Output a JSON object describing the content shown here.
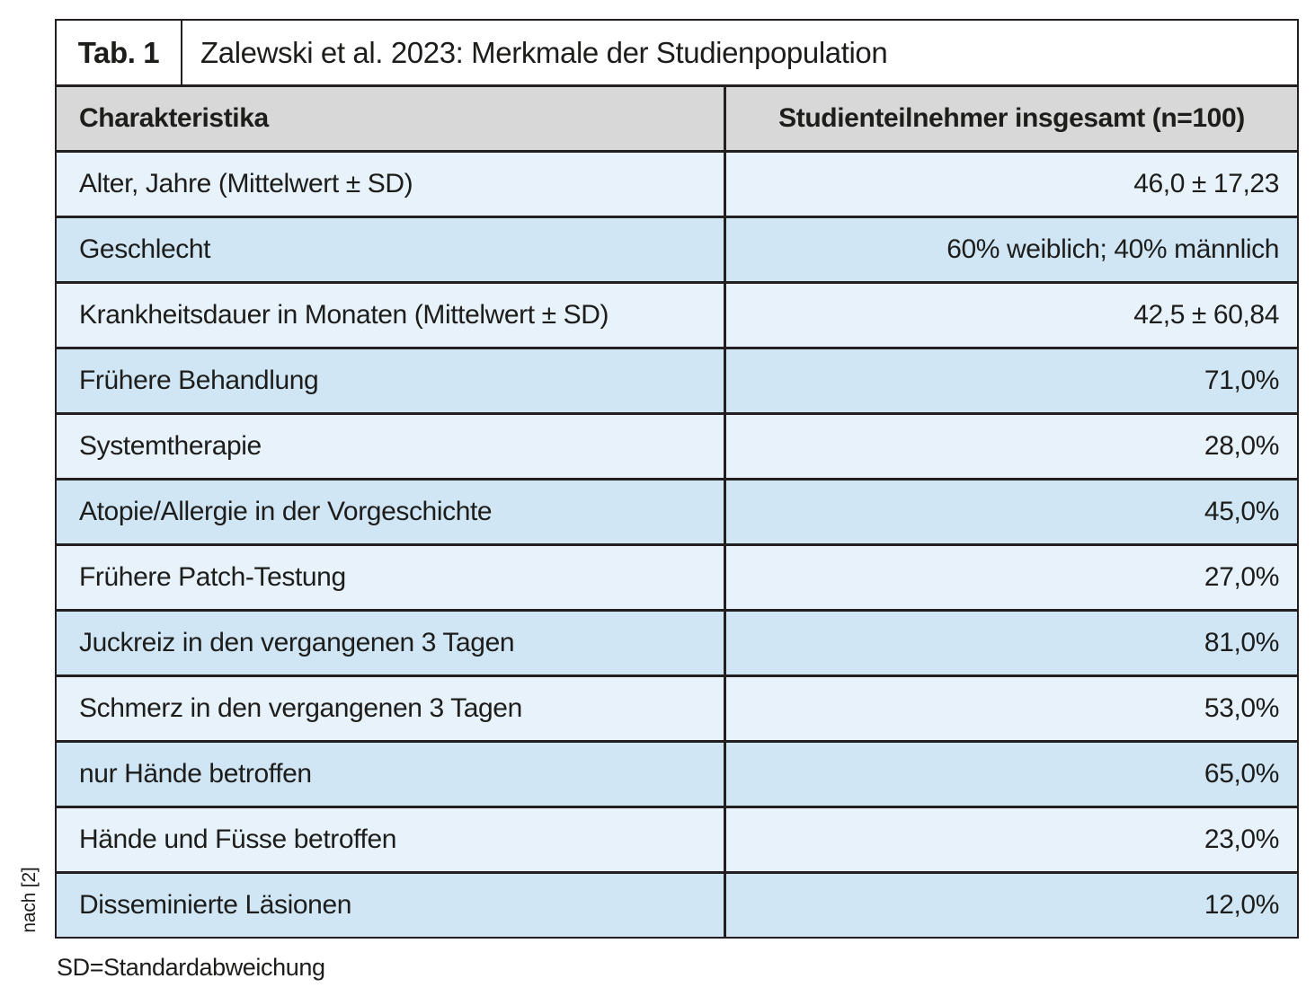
{
  "table": {
    "tag": "Tab. 1",
    "title": "Zalewski et al. 2023: Merkmale der Studienpopulation",
    "columns": [
      "Charakteristika",
      "Studienteilnehmer insgesamt (n=100)"
    ],
    "rows": [
      {
        "label": "Alter, Jahre (Mittelwert ± SD)",
        "value": "46,0 ± 17,23"
      },
      {
        "label": "Geschlecht",
        "value": "60% weiblich; 40% männlich"
      },
      {
        "label": "Krankheitsdauer in Monaten (Mittelwert ± SD)",
        "value": "42,5 ± 60,84"
      },
      {
        "label": "Frühere Behandlung",
        "value": "71,0%"
      },
      {
        "label": "Systemtherapie",
        "value": "28,0%"
      },
      {
        "label": "Atopie/Allergie in der Vorgeschichte",
        "value": "45,0%"
      },
      {
        "label": "Frühere Patch-Testung",
        "value": "27,0%"
      },
      {
        "label": "Juckreiz in den vergangenen 3 Tagen",
        "value": "81,0%"
      },
      {
        "label": "Schmerz in den vergangenen 3 Tagen",
        "value": "53,0%"
      },
      {
        "label": "nur Hände betroffen",
        "value": "65,0%"
      },
      {
        "label": "Hände und Füsse betroffen",
        "value": "23,0%"
      },
      {
        "label": "Disseminierte Läsionen",
        "value": "12,0%"
      }
    ],
    "footnote": "SD=Standardabweichung",
    "source": "nach [2]"
  },
  "colors": {
    "row_light": "#e8f2fa",
    "row_dark": "#d0e6f5",
    "header_gray": "#d8d8d8",
    "border": "#231f20",
    "text": "#1d1d1b"
  }
}
